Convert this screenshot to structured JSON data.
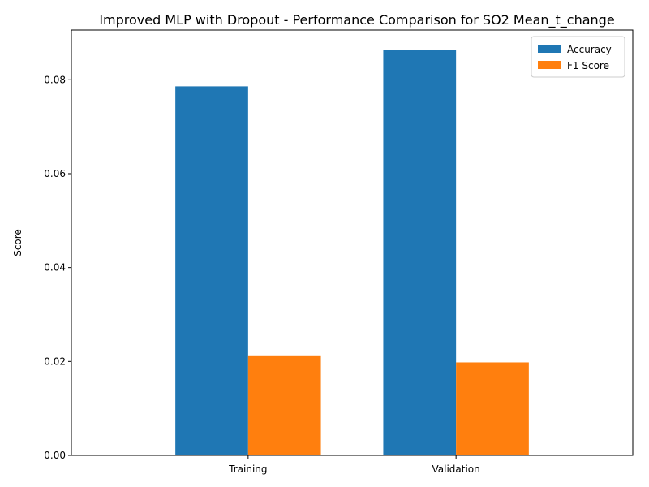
{
  "chart_data": {
    "type": "bar",
    "title": "Improved MLP with Dropout - Performance Comparison for SO2 Mean_t_change",
    "xlabel": "",
    "ylabel": "Score",
    "categories": [
      "Training",
      "Validation"
    ],
    "series": [
      {
        "name": "Accuracy",
        "values": [
          0.0786,
          0.0864
        ],
        "color": "#1f77b4"
      },
      {
        "name": "F1 Score",
        "values": [
          0.0213,
          0.0198
        ],
        "color": "#ff7f0e"
      }
    ],
    "ylim": [
      0,
      0.0906
    ],
    "yticks": [
      0.0,
      0.02,
      0.04,
      0.06,
      0.08
    ],
    "ytick_labels": [
      "0.00",
      "0.02",
      "0.04",
      "0.06",
      "0.08"
    ],
    "grid": false,
    "legend_position": "top-right"
  }
}
